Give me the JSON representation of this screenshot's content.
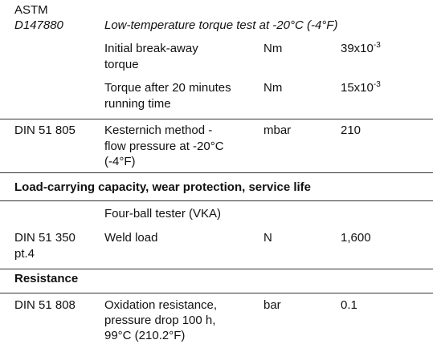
{
  "rows": [
    {
      "standard": [
        "ASTM",
        "D147880"
      ],
      "test": [
        "Low-temperature torque test at -20°C (-4°F)"
      ]
    },
    {
      "test": [
        "Initial break-away",
        "torque"
      ],
      "unit": "Nm",
      "value": "39x10",
      "exponent": "-3"
    },
    {
      "test": [
        "Torque after 20 minutes",
        "running time"
      ],
      "unit": "Nm",
      "value": "15x10",
      "exponent": "-3"
    },
    {
      "standard": [
        "DIN 51 805"
      ],
      "test": [
        "Kesternich method -",
        "flow pressure at -20°C",
        "(-4°F)"
      ],
      "unit": "mbar",
      "value": "210"
    },
    {
      "test": [
        "Four-ball tester (VKA)"
      ]
    },
    {
      "standard": [
        "DIN 51 350",
        "pt.4"
      ],
      "test": [
        "Weld load"
      ],
      "unit": "N",
      "value": "1,600"
    },
    {
      "standard": [
        "DIN 51 808"
      ],
      "test": [
        "Oxidation resistance,",
        "pressure drop 100 h,",
        "99°C (210.2°F)"
      ],
      "unit": "bar",
      "value": "0.1"
    }
  ],
  "sections": [
    "Load-carrying capacity, wear protection, service life",
    "Resistance"
  ]
}
